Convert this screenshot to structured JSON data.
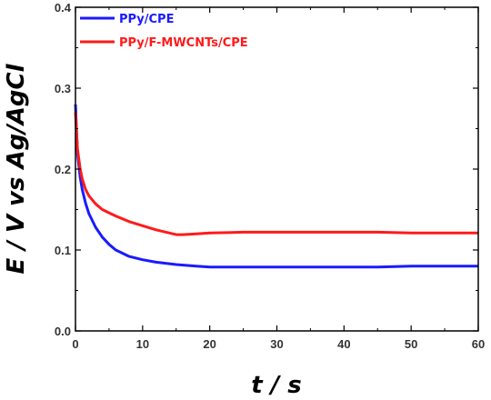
{
  "chart_data": {
    "type": "line",
    "xlabel": "t / s",
    "ylabel": "E / V vs Ag/AgCl",
    "xlim": [
      0,
      60
    ],
    "ylim": [
      0.0,
      0.4
    ],
    "xticks": [
      "0",
      "10",
      "20",
      "30",
      "40",
      "50",
      "60"
    ],
    "yticks": [
      "0.0",
      "0.1",
      "0.2",
      "0.3",
      "0.4"
    ],
    "legend_position": "top-left",
    "grid": false,
    "series": [
      {
        "name": "PPy/CPE",
        "color": "#1a1aff",
        "x": [
          0,
          0.3,
          0.7,
          1,
          1.5,
          2,
          3,
          4,
          5,
          6,
          8,
          10,
          12,
          15,
          18,
          20,
          25,
          30,
          35,
          40,
          45,
          50,
          55,
          60
        ],
        "y": [
          0.28,
          0.22,
          0.19,
          0.175,
          0.158,
          0.145,
          0.128,
          0.116,
          0.107,
          0.1,
          0.092,
          0.088,
          0.085,
          0.082,
          0.08,
          0.079,
          0.079,
          0.079,
          0.079,
          0.079,
          0.079,
          0.08,
          0.08,
          0.08
        ]
      },
      {
        "name": "PPy/F-MWCNTs/CPE",
        "color": "#ff1a1a",
        "x": [
          0,
          0.3,
          0.7,
          1,
          1.5,
          2,
          3,
          4,
          5,
          6,
          8,
          10,
          12,
          14,
          15,
          16,
          18,
          20,
          25,
          30,
          35,
          40,
          45,
          50,
          55,
          60
        ],
        "y": [
          0.27,
          0.225,
          0.2,
          0.188,
          0.175,
          0.167,
          0.157,
          0.15,
          0.146,
          0.142,
          0.135,
          0.13,
          0.125,
          0.121,
          0.119,
          0.119,
          0.12,
          0.121,
          0.122,
          0.122,
          0.122,
          0.122,
          0.122,
          0.121,
          0.121,
          0.121
        ]
      }
    ]
  }
}
